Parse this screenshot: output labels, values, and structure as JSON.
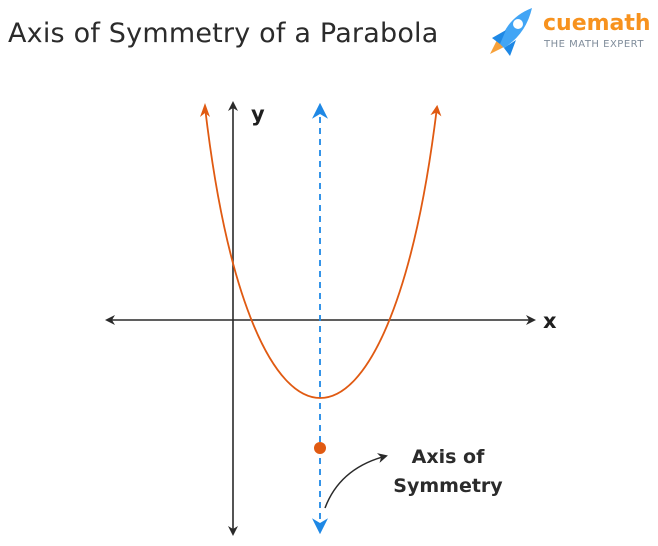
{
  "header": {
    "title": "Axis of Symmetry of a Parabola"
  },
  "brand": {
    "logo_icon": "rocket-icon",
    "name": "cuemath",
    "tagline": "THE MATH EXPERT",
    "colors": {
      "name": "#f7921e",
      "rocket": "#42a5f5",
      "tagline": "#7f8c9a"
    }
  },
  "diagram": {
    "x_axis_label": "x",
    "y_axis_label": "y",
    "annotation": {
      "line1": "Axis of",
      "line2": "Symmetry"
    },
    "colors": {
      "parabola": "#e05a12",
      "vertex": "#e05a12",
      "axis_of_symmetry": "#1e88e5",
      "axes": "#2a2a2a"
    }
  }
}
